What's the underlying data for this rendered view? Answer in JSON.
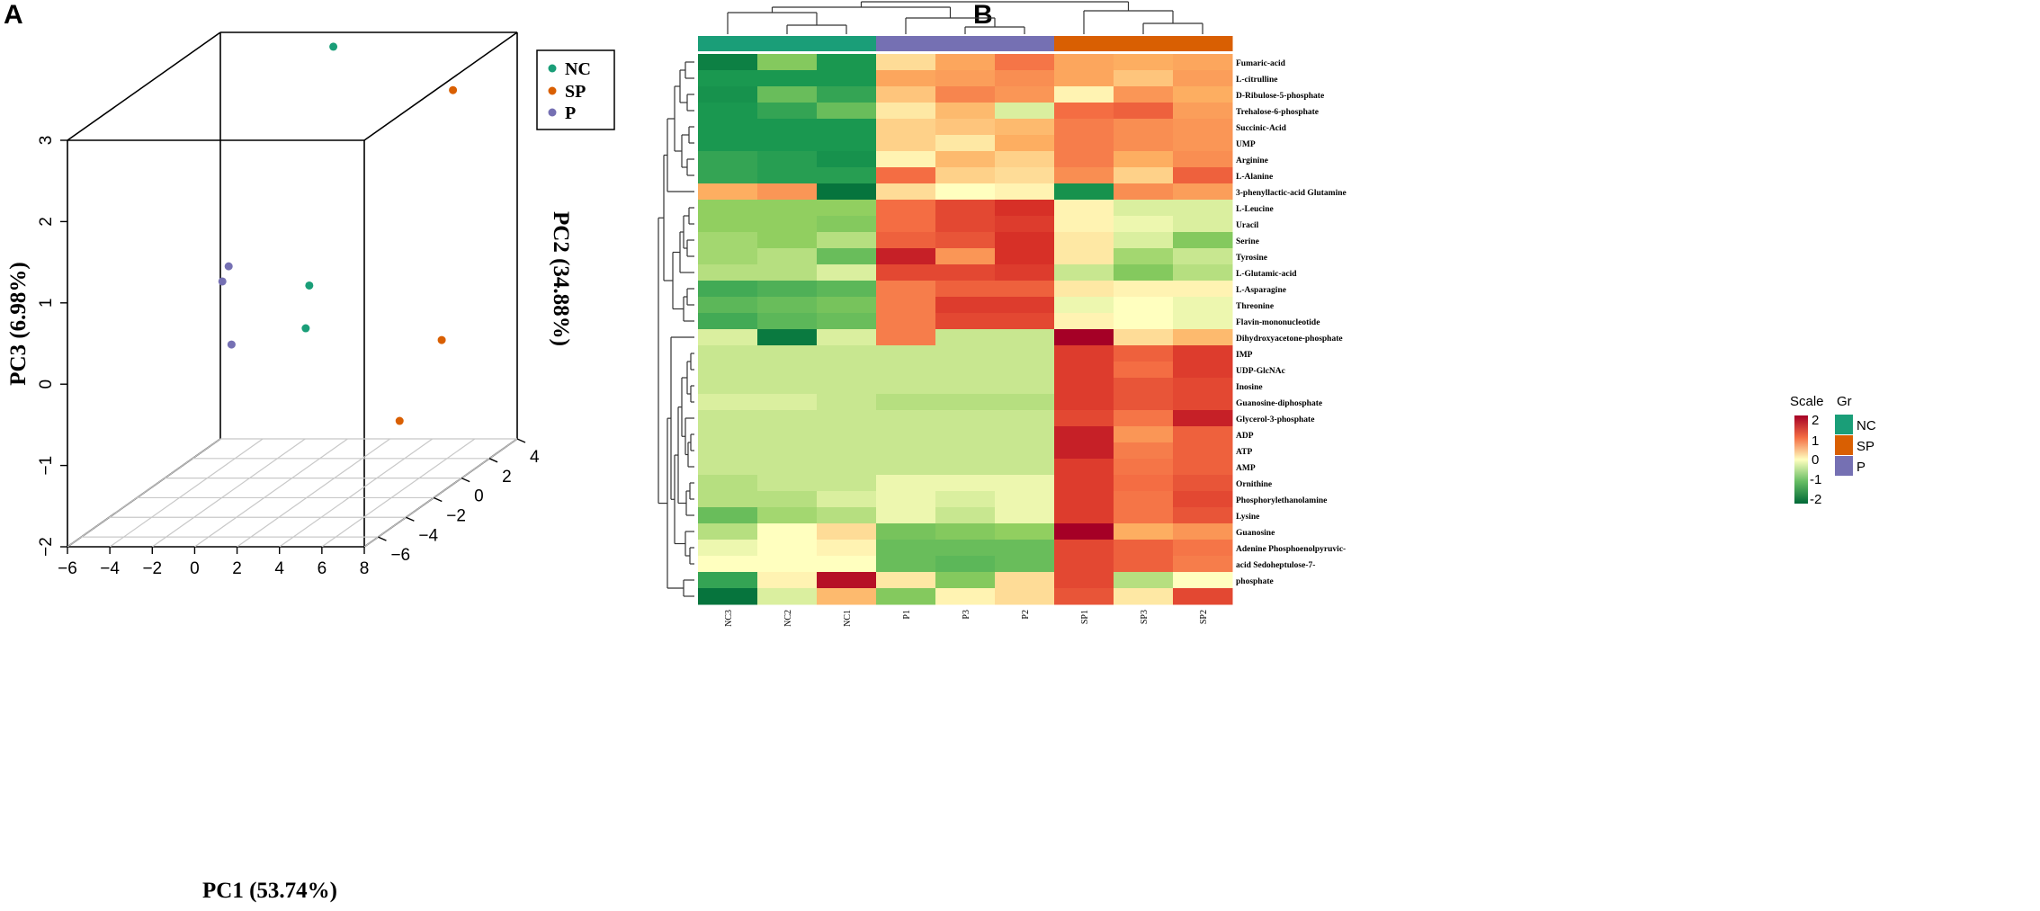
{
  "panels": {
    "a": "A",
    "b": "B"
  },
  "colors": {
    "NC": "#1a9e78",
    "SP": "#d95f02",
    "P": "#7570b3",
    "grid": "#c8c8c8",
    "scale_low": "#006837",
    "scale_mid": "#ffffbf",
    "scale_high": "#a50026"
  },
  "chart_data": [
    {
      "type": "scatter",
      "subtype": "3d-pca",
      "title": "",
      "xlabel": "PC1 (53.74%)",
      "ylabel": "PC2 (34.88%)",
      "zlabel": "PC3 (6.98%)",
      "xlim": [
        -6,
        8
      ],
      "ylim": [
        -7,
        4
      ],
      "zlim": [
        -2,
        3
      ],
      "xticks": [
        "−6",
        "−4",
        "−2",
        "0",
        "2",
        "4",
        "6",
        "8"
      ],
      "yticks": [
        "−6",
        "−4",
        "−2",
        "0",
        "2",
        "4"
      ],
      "zticks": [
        "−2",
        "−1",
        "0",
        "1",
        "2",
        "3"
      ],
      "legend": [
        {
          "name": "NC",
          "color": "#1a9e78"
        },
        {
          "name": "SP",
          "color": "#d95f02"
        },
        {
          "name": "P",
          "color": "#7570b3"
        }
      ],
      "legend_position": "top-right",
      "points": [
        {
          "group": "NC",
          "x": 3.0,
          "y": -1.6,
          "z": 3.5
        },
        {
          "group": "NC",
          "x": 1.8,
          "y": -1.5,
          "z": 0.55
        },
        {
          "group": "NC",
          "x": 1.5,
          "y": -1.3,
          "z": 0.0
        },
        {
          "group": "SP",
          "x": 7.2,
          "y": 0.6,
          "z": 2.7
        },
        {
          "group": "SP",
          "x": 6.8,
          "y": 0.4,
          "z": -0.35
        },
        {
          "group": "SP",
          "x": 5.6,
          "y": -0.8,
          "z": -1.2
        },
        {
          "group": "P",
          "x": -2.2,
          "y": -1.2,
          "z": 0.75
        },
        {
          "group": "P",
          "x": -2.3,
          "y": -1.5,
          "z": 0.6
        },
        {
          "group": "P",
          "x": -2.0,
          "y": -1.3,
          "z": -0.2
        }
      ]
    },
    {
      "type": "heatmap",
      "title": "",
      "scale_title": "Scale",
      "group_title": "Gr",
      "scale_ticks": [
        "2",
        "1",
        "0",
        "-1",
        "-2"
      ],
      "scale_range": [
        -2.3,
        2.3
      ],
      "groups": [
        {
          "name": "NC",
          "color": "#1a9e78"
        },
        {
          "name": "SP",
          "color": "#d95f02"
        },
        {
          "name": "P",
          "color": "#7570b3"
        }
      ],
      "columns": [
        "NC3",
        "NC2",
        "NC1",
        "P1",
        "P3",
        "P2",
        "SP1",
        "SP3",
        "SP2"
      ],
      "column_groups": [
        "NC",
        "NC",
        "NC",
        "P",
        "P",
        "P",
        "SP",
        "SP",
        "SP"
      ],
      "rows": [
        "Fumaric-acid",
        "L-citrulline",
        "D-Ribulose-5-phosphate",
        "Trehalose-6-phosphate",
        "Succinic-Acid",
        "UMP",
        "Arginine",
        "L-Alanine",
        "3-phenyllactic-acid Glutamine",
        "L-Leucine",
        "Uracil",
        "Serine",
        "Tyrosine",
        "L-Glutamic-acid",
        "L-Asparagine",
        "Threonine",
        "Flavin-mononucleotide",
        "Dihydroxyacetone-phosphate",
        "IMP",
        "UDP-GlcNAc",
        "Inosine",
        "Guanosine-diphosphate",
        "Glycerol-3-phosphate",
        "ADP",
        "ATP",
        "AMP",
        "Ornithine",
        "Phosphorylethanolamine",
        "Lysine",
        "Guanosine",
        "Adenine Phosphoenolpyruvic-",
        "acid Sedoheptulose-7-",
        "phosphate",
        ""
      ],
      "values": [
        [
          -1.9,
          -0.7,
          -1.5,
          0.3,
          0.8,
          1.4,
          0.8,
          0.7,
          0.8
        ],
        [
          -1.5,
          -1.5,
          -1.5,
          0.8,
          0.9,
          1.1,
          0.8,
          0.5,
          0.9
        ],
        [
          -1.6,
          -0.9,
          -1.3,
          0.5,
          1.2,
          1.0,
          0.1,
          1.0,
          0.7
        ],
        [
          -1.5,
          -1.3,
          -0.9,
          0.2,
          0.6,
          -0.2,
          1.5,
          1.6,
          0.9
        ],
        [
          -1.5,
          -1.5,
          -1.5,
          0.4,
          0.5,
          0.6,
          1.3,
          1.1,
          1.0
        ],
        [
          -1.5,
          -1.5,
          -1.5,
          0.4,
          0.2,
          0.7,
          1.3,
          1.1,
          1.0
        ],
        [
          -1.3,
          -1.4,
          -1.6,
          0.1,
          0.6,
          0.4,
          1.3,
          0.7,
          1.1
        ],
        [
          -1.3,
          -1.4,
          -1.4,
          1.5,
          0.4,
          0.3,
          1.1,
          0.4,
          1.6
        ],
        [
          0.7,
          1.0,
          -2.1,
          0.3,
          0.0,
          0.1,
          -1.6,
          1.1,
          0.9
        ],
        [
          -0.6,
          -0.6,
          -0.6,
          1.5,
          1.8,
          2.0,
          0.1,
          -0.2,
          -0.2
        ],
        [
          -0.6,
          -0.6,
          -0.7,
          1.5,
          1.8,
          1.9,
          0.1,
          -0.1,
          -0.2
        ],
        [
          -0.5,
          -0.6,
          -0.4,
          1.6,
          1.7,
          2.0,
          0.2,
          -0.2,
          -0.7
        ],
        [
          -0.5,
          -0.4,
          -0.9,
          2.1,
          1.0,
          2.0,
          0.2,
          -0.5,
          -0.3
        ],
        [
          -0.4,
          -0.4,
          -0.2,
          1.8,
          1.8,
          1.9,
          -0.3,
          -0.7,
          -0.4
        ],
        [
          -1.2,
          -1.1,
          -1.0,
          1.3,
          1.6,
          1.6,
          0.2,
          0.1,
          0.1
        ],
        [
          -1.0,
          -0.9,
          -0.8,
          1.3,
          1.9,
          1.9,
          -0.1,
          0.0,
          -0.1
        ],
        [
          -1.2,
          -1.0,
          -0.9,
          1.3,
          1.8,
          1.8,
          0.1,
          0.0,
          -0.1
        ],
        [
          -0.2,
          -2.0,
          -0.2,
          1.3,
          -0.3,
          -0.3,
          2.3,
          0.3,
          0.6
        ],
        [
          -0.3,
          -0.3,
          -0.3,
          -0.3,
          -0.3,
          -0.3,
          1.9,
          1.6,
          1.9
        ],
        [
          -0.3,
          -0.3,
          -0.3,
          -0.3,
          -0.3,
          -0.3,
          1.9,
          1.5,
          1.9
        ],
        [
          -0.3,
          -0.3,
          -0.3,
          -0.3,
          -0.3,
          -0.3,
          1.9,
          1.7,
          1.8
        ],
        [
          -0.2,
          -0.2,
          -0.3,
          -0.4,
          -0.4,
          -0.4,
          1.9,
          1.7,
          1.8
        ],
        [
          -0.3,
          -0.3,
          -0.3,
          -0.3,
          -0.3,
          -0.3,
          1.8,
          1.4,
          2.1
        ],
        [
          -0.3,
          -0.3,
          -0.3,
          -0.3,
          -0.3,
          -0.3,
          2.1,
          1.0,
          1.6
        ],
        [
          -0.3,
          -0.3,
          -0.3,
          -0.3,
          -0.3,
          -0.3,
          2.1,
          1.3,
          1.6
        ],
        [
          -0.3,
          -0.3,
          -0.3,
          -0.3,
          -0.3,
          -0.3,
          1.9,
          1.4,
          1.6
        ],
        [
          -0.4,
          -0.3,
          -0.3,
          -0.1,
          -0.1,
          -0.1,
          1.9,
          1.5,
          1.7
        ],
        [
          -0.4,
          -0.4,
          -0.2,
          -0.1,
          -0.2,
          -0.1,
          1.9,
          1.4,
          1.8
        ],
        [
          -0.9,
          -0.5,
          -0.4,
          -0.1,
          -0.3,
          -0.1,
          1.9,
          1.4,
          1.7
        ],
        [
          -0.4,
          0.0,
          0.3,
          -0.8,
          -0.7,
          -0.6,
          2.3,
          0.7,
          1.0
        ],
        [
          -0.1,
          0.0,
          0.1,
          -0.9,
          -0.9,
          -0.9,
          1.8,
          1.6,
          1.4
        ],
        [
          0.0,
          0.0,
          0.0,
          -0.9,
          -1.0,
          -0.9,
          1.8,
          1.6,
          1.3
        ],
        [
          -1.3,
          0.1,
          2.2,
          0.2,
          -0.7,
          0.3,
          1.8,
          -0.4,
          0.0
        ],
        [
          -2.1,
          -0.2,
          0.6,
          -0.7,
          0.1,
          0.3,
          1.7,
          0.2,
          1.8
        ]
      ]
    }
  ]
}
